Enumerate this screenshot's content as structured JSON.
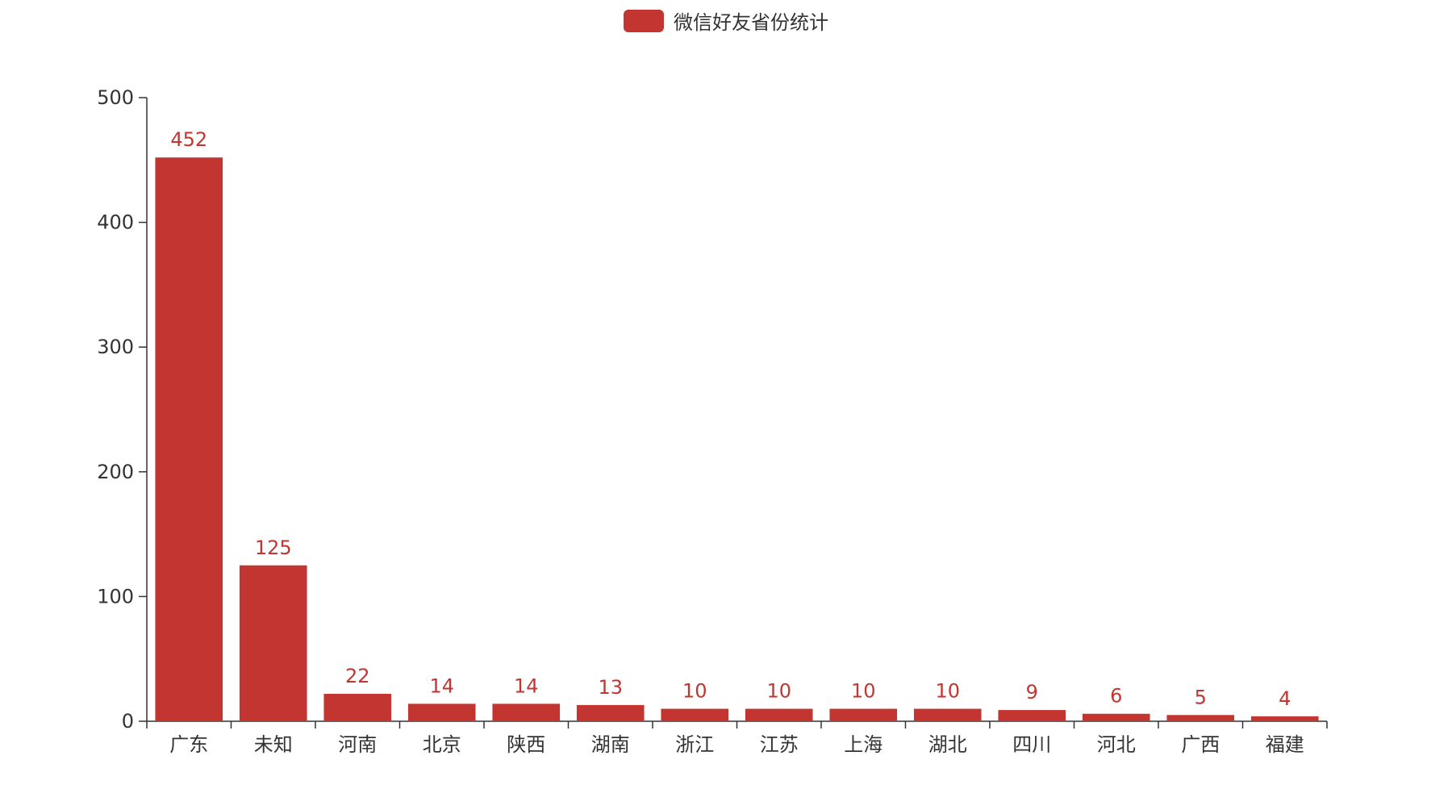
{
  "chart_data": {
    "type": "bar",
    "legend": {
      "label": "微信好友省份统计",
      "placement": "top-center"
    },
    "categories": [
      "广东",
      "未知",
      "河南",
      "北京",
      "陕西",
      "湖南",
      "浙江",
      "江苏",
      "上海",
      "湖北",
      "四川",
      "河北",
      "广西",
      "福建"
    ],
    "series": [
      {
        "name": "微信好友省份统计",
        "values": [
          452,
          125,
          22,
          14,
          14,
          13,
          10,
          10,
          10,
          10,
          9,
          6,
          5,
          4
        ]
      }
    ],
    "ylim": [
      0,
      500
    ],
    "yticks": [
      0,
      100,
      200,
      300,
      400,
      500
    ],
    "grid": false,
    "colors": {
      "bar": "#c23531",
      "axis": "#333333",
      "label": "#c23531"
    }
  }
}
